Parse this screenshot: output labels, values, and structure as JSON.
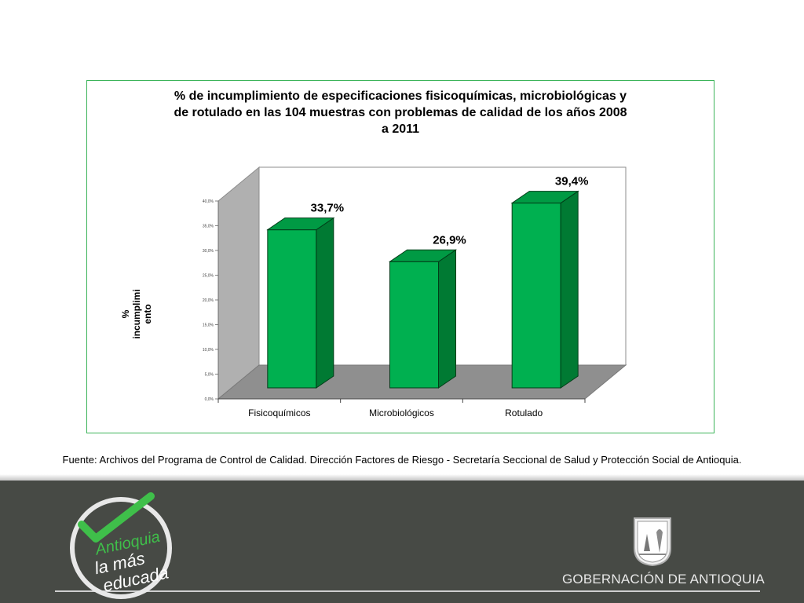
{
  "chart_data": {
    "type": "bar",
    "title": "% de incumplimiento de especificaciones fisicoquímicas, microbiológicas y de rotulado en las 104 muestras con problemas de calidad de los años 2008 a 2011",
    "title_lines": [
      "% de incumplimiento de especificaciones fisicoquímicas, microbiológicas y",
      "de rotulado en las 104 muestras con problemas de calidad de los años 2008",
      "a 2011"
    ],
    "ylabel_lines": [
      "%",
      "incumplimi",
      "ento"
    ],
    "categories": [
      "Fisicoquímicos",
      "Microbiológicos",
      "Rotulado"
    ],
    "values": [
      33.7,
      26.9,
      39.4
    ],
    "data_labels": [
      "33,7%",
      "26,9%",
      "39,4%"
    ],
    "ylim": [
      0,
      40
    ],
    "yticks": [
      "0,0%",
      "5,0%",
      "10,0%",
      "15,0%",
      "20,0%",
      "25,0%",
      "30,0%",
      "35,0%",
      "40,0%"
    ],
    "grid": false,
    "bar_color": "#00b050",
    "bar_side_color": "#007a33",
    "bar_top_color": "#009a44"
  },
  "source_text": "Fuente: Archivos del Programa de Control de Calidad. Dirección Factores de Riesgo - Secretaría Seccional de Salud y Protección Social de Antioquia.",
  "footer": {
    "logo_lines": [
      "Antioquia",
      "la más",
      "educada"
    ],
    "government_text": "GOBERNACIÓN DE ANTIOQUIA"
  }
}
